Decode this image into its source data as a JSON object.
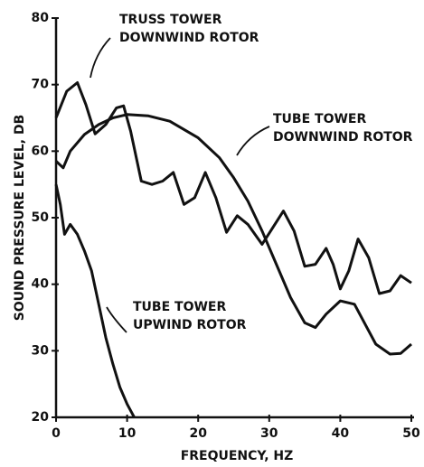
{
  "chart_data": {
    "type": "line",
    "xlabel": "FREQUENCY, HZ",
    "ylabel": "SOUND PRESSURE LEVEL, DB",
    "xlim": [
      0,
      50
    ],
    "xticks": [
      0,
      10,
      20,
      30,
      40,
      50
    ],
    "ylim": [
      20,
      80
    ],
    "yticks": [
      20,
      30,
      40,
      50,
      60,
      70,
      80
    ],
    "series": [
      {
        "label": [
          "TRUSS TOWER",
          "DOWNWIND ROTOR"
        ],
        "color": "#111111",
        "x": [
          0,
          1.5,
          3,
          4.2,
          5.5,
          7,
          8.5,
          9.5,
          10.5,
          12,
          13.5,
          15,
          16.5,
          18,
          19.5,
          21,
          22.5,
          24,
          25.5,
          27,
          29,
          30.5,
          32,
          33.5,
          35,
          36.5,
          38,
          39,
          40,
          41.2,
          42.5,
          44,
          45.5,
          47,
          48.5,
          50
        ],
        "values": [
          65,
          69,
          70.3,
          67,
          62.6,
          64,
          66.5,
          66.8,
          63,
          55.5,
          55,
          55.5,
          56.8,
          52,
          53,
          56.8,
          53,
          47.8,
          50.3,
          49,
          46,
          48.5,
          51,
          48,
          42.7,
          43,
          45.4,
          43,
          39.3,
          42,
          46.8,
          44,
          38.6,
          39,
          41.3,
          40.2
        ]
      },
      {
        "label": [
          "TUBE TOWER",
          "DOWNWIND ROTOR"
        ],
        "color": "#111111",
        "x": [
          0,
          1,
          2,
          4,
          6,
          8,
          10,
          13,
          16,
          20,
          23,
          25,
          27,
          29,
          31,
          33,
          35,
          36.5,
          38,
          40,
          42,
          43.5,
          45,
          47,
          48.5,
          50
        ],
        "values": [
          58.5,
          57.5,
          60,
          62.5,
          64,
          65,
          65.5,
          65.3,
          64.5,
          62,
          59,
          56,
          52.5,
          48,
          43,
          38,
          34.2,
          33.5,
          35.5,
          37.5,
          37,
          34,
          31,
          29.5,
          29.6,
          31
        ]
      },
      {
        "label": [
          "TUBE TOWER",
          "UPWIND ROTOR"
        ],
        "color": "#111111",
        "x": [
          0,
          0.6,
          1.2,
          2,
          3,
          4,
          5,
          6,
          7,
          8,
          9,
          10,
          11
        ],
        "values": [
          55,
          52,
          47.5,
          49,
          47.5,
          45,
          42,
          37,
          32,
          28,
          24.5,
          22,
          20
        ]
      }
    ]
  }
}
